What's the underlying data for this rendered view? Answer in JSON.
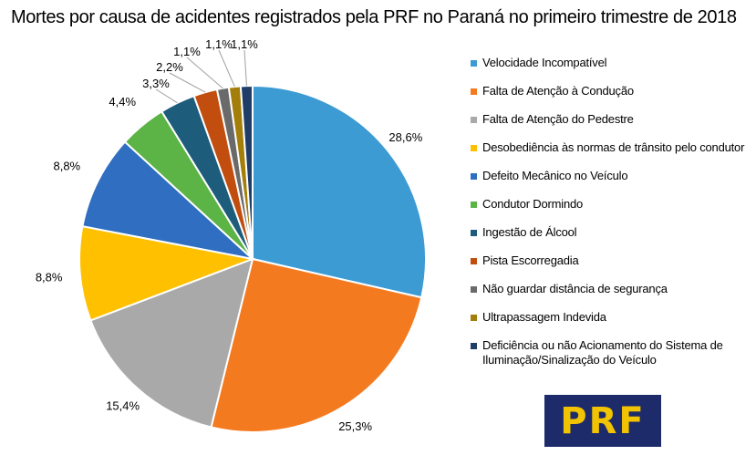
{
  "title": "Mortes por causa de acidentes registrados  pela PRF no Paraná  no primeiro trimestre de 2018",
  "logo_text": "PRF",
  "chart_data": {
    "type": "pie",
    "title": "Mortes por causa de acidentes registrados  pela PRF no Paraná  no primeiro trimestre de 2018",
    "legend_position": "right",
    "categories": [
      "Velocidade Incompatível",
      "Falta de Atenção à Condução",
      "Falta de Atenção do Pedestre",
      "Desobediência às normas de trânsito pelo condutor",
      "Defeito Mecânico no Veículo",
      "Condutor Dormindo",
      "Ingestão de Álcool",
      "Pista Escorregadia",
      "Não guardar distância de segurança",
      "Ultrapassagem Indevida",
      "Deficiência ou não Acionamento do Sistema de Iluminação/Sinalização do Veículo"
    ],
    "values": [
      28.6,
      25.3,
      15.4,
      8.8,
      8.8,
      4.4,
      3.3,
      2.2,
      1.1,
      1.1,
      1.1
    ],
    "labels": [
      "28,6%",
      "25,3%",
      "15,4%",
      "8,8%",
      "8,8%",
      "4,4%",
      "3,3%",
      "2,2%",
      "1,1%",
      "1,1%",
      "1,1%"
    ],
    "colors": [
      "#3d9bd3",
      "#f47a20",
      "#a9a9a9",
      "#ffc000",
      "#2f6ec0",
      "#5cb346",
      "#1e5c7c",
      "#c14e0f",
      "#6a6a6a",
      "#a47e0a",
      "#1f3d66"
    ]
  }
}
